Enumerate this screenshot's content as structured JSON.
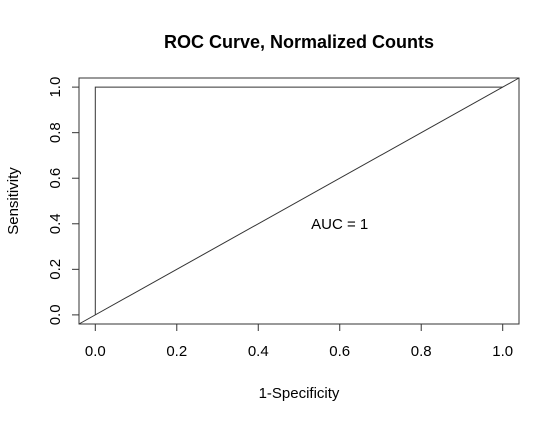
{
  "chart_data": {
    "type": "line",
    "title": "ROC Curve, Normalized Counts",
    "xlabel": "1-Specificity",
    "ylabel": "Sensitivity",
    "xlim": [
      -0.04,
      1.04
    ],
    "ylim": [
      -0.04,
      1.04
    ],
    "xticks": [
      0,
      0.2,
      0.4,
      0.6,
      0.8,
      1
    ],
    "yticks": [
      0,
      0.2,
      0.4,
      0.6,
      0.8,
      1
    ],
    "xtick_labels": [
      "0.0",
      "0.2",
      "0.4",
      "0.6",
      "0.8",
      "1.0"
    ],
    "ytick_labels": [
      "0.0",
      "0.2",
      "0.4",
      "0.6",
      "0.8",
      "1.0"
    ],
    "grid": false,
    "series": [
      {
        "x": [
          0,
          0,
          1
        ],
        "y": [
          0,
          1,
          1
        ],
        "color": "#333333"
      }
    ],
    "reference_line": {
      "x": [
        -0.04,
        1.04
      ],
      "y": [
        -0.04,
        1.04
      ],
      "color": "#333333"
    },
    "annotations": [
      {
        "text": "AUC =  1",
        "x": 0.6,
        "y": 0.4
      }
    ]
  }
}
